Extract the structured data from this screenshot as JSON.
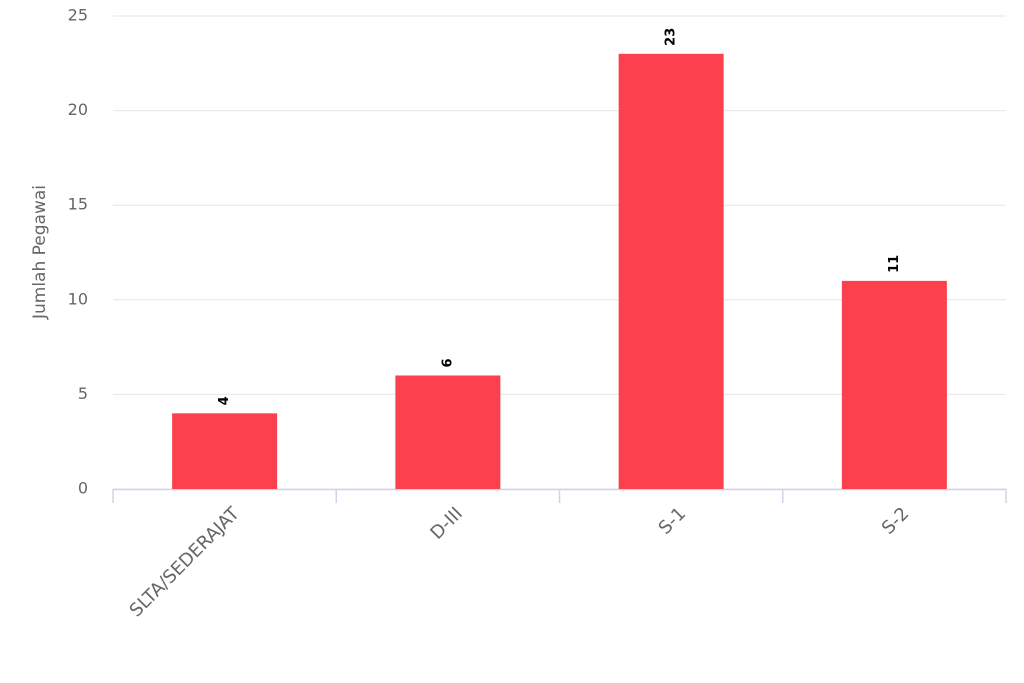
{
  "chart_data": {
    "type": "bar",
    "y_axis_title": "Jumlah Pegawai",
    "categories": [
      "SLTA/SEDERAJAT",
      "D-III",
      "S-1",
      "S-2"
    ],
    "values": [
      4,
      6,
      23,
      11
    ],
    "color": "#fc404d",
    "ylim": [
      0,
      25
    ],
    "yticks": [
      0,
      5,
      10,
      15,
      20,
      25
    ],
    "grid": true
  }
}
